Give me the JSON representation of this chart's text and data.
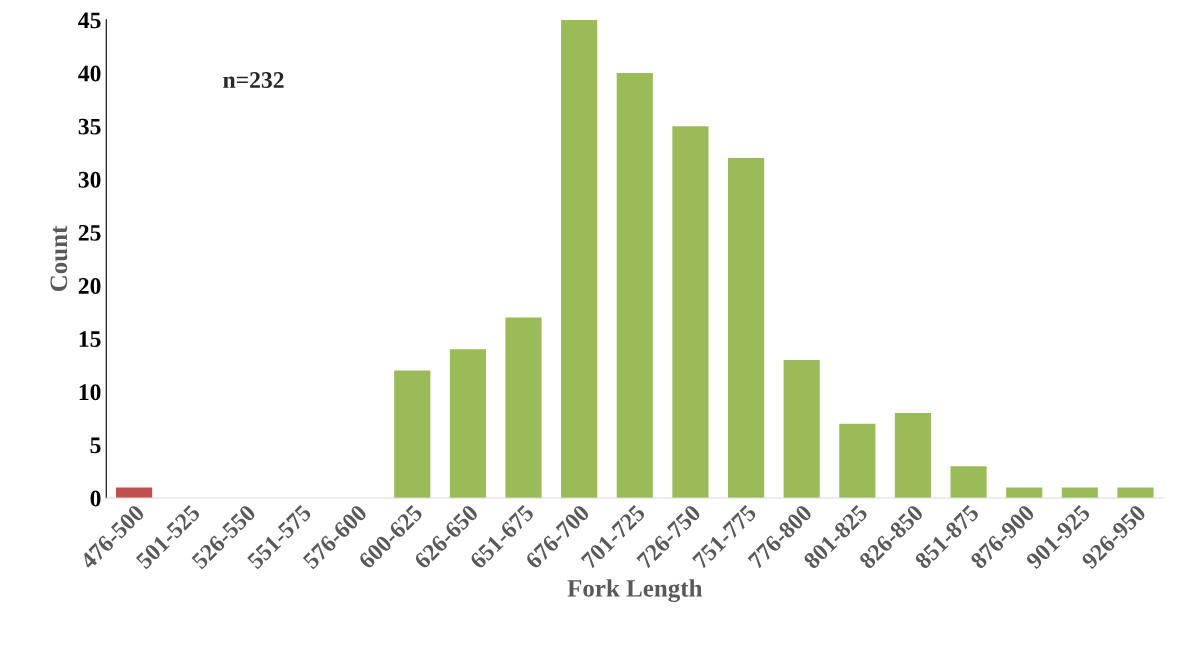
{
  "chart_data": {
    "type": "bar",
    "xlabel": "Fork Length",
    "ylabel": "Count",
    "categories": [
      "476-500",
      "501-525",
      "526-550",
      "551-575",
      "576-600",
      "600-625",
      "626-650",
      "651-675",
      "676-700",
      "701-725",
      "726-750",
      "751-775",
      "776-800",
      "801-825",
      "826-850",
      "851-875",
      "876-900",
      "901-925",
      "926-950"
    ],
    "values": [
      1,
      0,
      0,
      0,
      0,
      12,
      14,
      17,
      45,
      40,
      35,
      32,
      13,
      7,
      8,
      3,
      1,
      1,
      1
    ],
    "colors": [
      "#c0504d",
      "#9bbb59",
      "#9bbb59",
      "#9bbb59",
      "#9bbb59",
      "#9bbb59",
      "#9bbb59",
      "#9bbb59",
      "#9bbb59",
      "#9bbb59",
      "#9bbb59",
      "#9bbb59",
      "#9bbb59",
      "#9bbb59",
      "#9bbb59",
      "#9bbb59",
      "#9bbb59",
      "#9bbb59",
      "#9bbb59"
    ],
    "ylim": [
      0,
      45
    ],
    "yticks": [
      0,
      5,
      10,
      15,
      20,
      25,
      30,
      35,
      40,
      45
    ],
    "grid": false,
    "legend": false,
    "annotations": [
      "n=232"
    ]
  }
}
